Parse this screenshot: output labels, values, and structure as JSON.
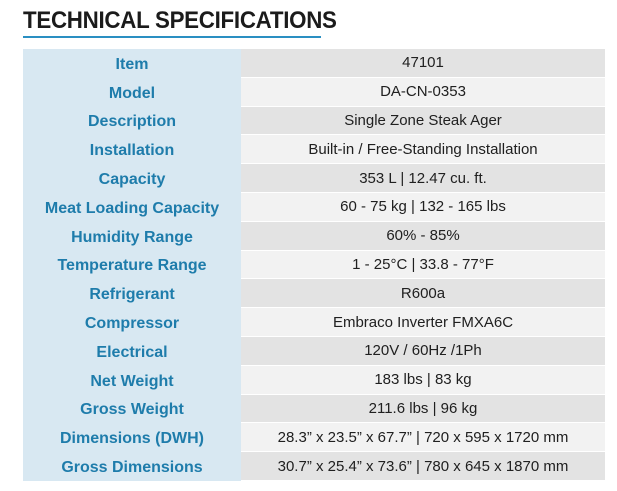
{
  "header": {
    "title": "TECHNICAL SPECIFICATIONS"
  },
  "colors": {
    "accent": "#2a8fc2",
    "label_text": "#1e7cab",
    "label_bg": "#d8e8f2",
    "value_bg_dark": "#e3e3e3",
    "value_bg_light": "#f2f2f2"
  },
  "specs": [
    {
      "label": "Item",
      "value": "47101"
    },
    {
      "label": "Model",
      "value": "DA-CN-0353"
    },
    {
      "label": "Description",
      "value": "Single Zone Steak Ager"
    },
    {
      "label": "Installation",
      "value": "Built-in / Free-Standing Installation"
    },
    {
      "label": "Capacity",
      "value": "353 L | 12.47 cu. ft."
    },
    {
      "label": "Meat Loading Capacity",
      "value": "60 - 75 kg | 132 - 165 lbs"
    },
    {
      "label": "Humidity Range",
      "value": "60% - 85%"
    },
    {
      "label": "Temperature Range",
      "value": "1 - 25°C | 33.8 - 77°F"
    },
    {
      "label": "Refrigerant",
      "value": "R600a"
    },
    {
      "label": "Compressor",
      "value": "Embraco Inverter FMXA6C"
    },
    {
      "label": "Electrical",
      "value": "120V / 60Hz /1Ph"
    },
    {
      "label": "Net Weight",
      "value": "183 lbs | 83 kg"
    },
    {
      "label": "Gross Weight",
      "value": "211.6 lbs | 96 kg"
    },
    {
      "label": "Dimensions (DWH)",
      "value": "28.3” x 23.5” x 67.7” | 720 x 595 x 1720 mm"
    },
    {
      "label": "Gross Dimensions",
      "value": "30.7” x 25.4” x 73.6” | 780 x 645 x 1870 mm"
    }
  ]
}
